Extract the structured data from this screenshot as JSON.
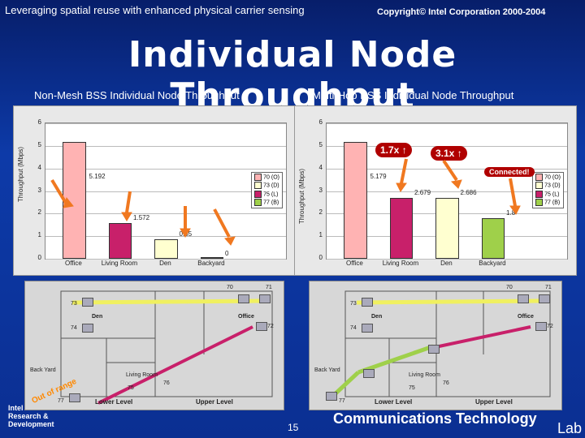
{
  "header": {
    "left": "Leveraging spatial reuse with enhanced physical carrier sensing",
    "right": "Copyright© Intel Corporation 2000-2004"
  },
  "title": "Individual Node Throughput",
  "subtitles": {
    "left": "Non-Mesh BSS Individual Node Throughput",
    "right": "Multi-Hop ESS Individual Node Throughput"
  },
  "chart_data": [
    {
      "type": "bar",
      "title": "Non-Mesh BSS Individual Node Throughput",
      "ylabel": "Throughput (Mbps)",
      "ylim": [
        0,
        6
      ],
      "yticks": [
        "0",
        "1",
        "2",
        "3",
        "4",
        "5",
        "6"
      ],
      "categories": [
        "Office",
        "Living Room",
        "Den",
        "Backyard"
      ],
      "values": [
        5.192,
        1.572,
        0.85,
        0
      ],
      "value_labels": [
        "5.192",
        "1.572",
        "0.85",
        "0"
      ],
      "bar_colors": [
        "#ffb3b3",
        "#c8206a",
        "#ffffd0",
        "#9fd04a"
      ],
      "legend": [
        "70 (O)",
        "73 (D)",
        "75 (L)",
        "77 (B)"
      ],
      "legend_colors": [
        "#ffb3b3",
        "#ffffd0",
        "#c8206a",
        "#9fd04a"
      ],
      "grid": true,
      "legend_position": "right"
    },
    {
      "type": "bar",
      "title": "Multi-Hop ESS Individual Node Throughput",
      "ylabel": "Throughput (Mbps)",
      "ylim": [
        0,
        6
      ],
      "yticks": [
        "0",
        "1",
        "2",
        "3",
        "4",
        "5",
        "6"
      ],
      "categories": [
        "Office",
        "Living Room",
        "Den",
        "Backyard"
      ],
      "values": [
        5.179,
        2.679,
        2.686,
        1.8
      ],
      "value_labels": [
        "5.179",
        "2.679",
        "2.686",
        "1.8"
      ],
      "bar_colors": [
        "#ffb3b3",
        "#c8206a",
        "#ffffd0",
        "#9fd04a"
      ],
      "legend": [
        "70 (O)",
        "73 (D)",
        "75 (L)",
        "77 (B)"
      ],
      "legend_colors": [
        "#ffb3b3",
        "#ffffd0",
        "#c8206a",
        "#9fd04a"
      ],
      "grid": true,
      "legend_position": "right"
    }
  ],
  "callouts": {
    "mult1": "1.7x ↑",
    "mult2": "3.1x ↑",
    "connected": "Connected!"
  },
  "floorplan": {
    "left": {
      "rooms": [
        "Den",
        "Office",
        "Living Room",
        "Back Yard",
        "Lower Level",
        "Upper Level"
      ],
      "nodes": [
        "70",
        "71",
        "72",
        "73",
        "74",
        "75",
        "76",
        "77"
      ],
      "out_of_range": "Out of range"
    },
    "right": {
      "rooms": [
        "Den",
        "Office",
        "Living Room",
        "Back Yard",
        "Lower Level",
        "Upper Level"
      ],
      "nodes": [
        "70",
        "71",
        "72",
        "73",
        "74",
        "75",
        "76",
        "77"
      ]
    }
  },
  "footer": {
    "org_lines": [
      "Intel",
      "Research &",
      "Development"
    ],
    "page": "15",
    "ct": "Communications Technology",
    "lab": "Lab"
  },
  "colors": {
    "background": "#0a2a86",
    "office": "#ffb3b3",
    "living_room": "#c8206a",
    "den": "#ffffd0",
    "backyard": "#9fd04a",
    "callout": "#b00000",
    "arrow": "#f07820"
  }
}
